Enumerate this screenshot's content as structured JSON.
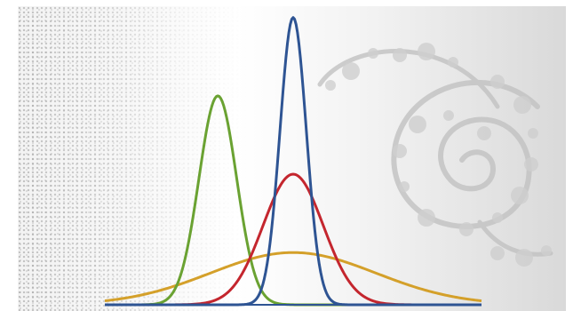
{
  "chart_data": {
    "type": "line",
    "title": "",
    "xlabel": "",
    "ylabel": "",
    "grid": false,
    "xlim": [
      -5,
      5
    ],
    "ylim": [
      0,
      1.15
    ],
    "series": [
      {
        "color": "#6aa232",
        "mu": -2.0,
        "sigma": 0.5,
        "peak": 0.8
      },
      {
        "color": "#2e5493",
        "mu": 0.0,
        "sigma": 0.35,
        "peak": 1.1
      },
      {
        "color": "#c4262e",
        "mu": 0.0,
        "sigma": 0.8,
        "peak": 0.5
      },
      {
        "color": "#d4a02a",
        "mu": 0.0,
        "sigma": 2.2,
        "peak": 0.2
      }
    ]
  },
  "background": {
    "decoration": "julia-fractal-spiral",
    "colors": [
      "#f3f3f3",
      "#ffffff",
      "#d9d9d9"
    ]
  }
}
